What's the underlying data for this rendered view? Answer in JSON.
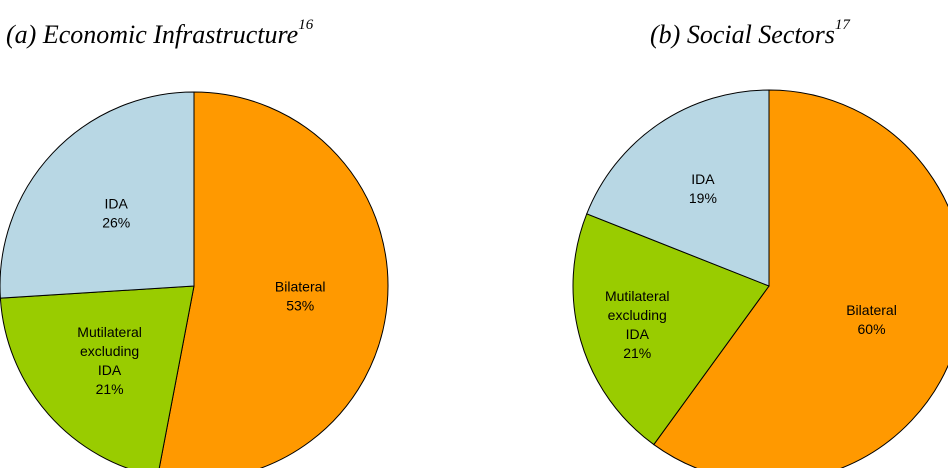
{
  "chart_data": [
    {
      "type": "pie",
      "title": "(a) Economic Infrastructure",
      "title_superscript": "16",
      "slices": [
        {
          "label": "Bilateral",
          "value": 53,
          "value_text": "53%",
          "color": "#FF9900"
        },
        {
          "label": "Mutilateral excluding IDA",
          "label_lines": [
            "Mutilateral",
            "excluding",
            "IDA"
          ],
          "value": 21,
          "value_text": "21%",
          "color": "#99CC00"
        },
        {
          "label": "IDA",
          "value": 26,
          "value_text": "26%",
          "color": "#B8D7E4"
        }
      ]
    },
    {
      "type": "pie",
      "title": "(b) Social Sectors",
      "title_superscript": "17",
      "slices": [
        {
          "label": "Bilateral",
          "value": 60,
          "value_text": "60%",
          "color": "#FF9900"
        },
        {
          "label": "Mutilateral excluding IDA",
          "label_lines": [
            "Mutilateral",
            "excluding",
            "IDA"
          ],
          "value": 21,
          "value_text": "21%",
          "color": "#99CC00"
        },
        {
          "label": "IDA",
          "value": 19,
          "value_text": "19%",
          "color": "#B8D7E4"
        }
      ]
    }
  ]
}
